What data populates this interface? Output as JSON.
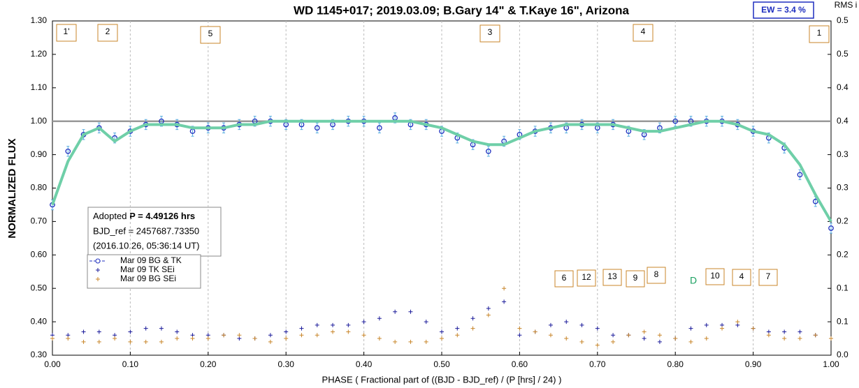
{
  "chart_data": {
    "type": "scatter",
    "title": "WD 1145+017; 2019.03.09; B.Gary 14\" & T.Kaye 16\",  Arizona",
    "xlabel": "PHASE ( Fractional part of ((BJD - BJD_ref) / (P [hrs] / 24) )",
    "ylabel": "NORMALIZED FLUX",
    "y2label": "RMS i",
    "ew_label": "EW =  3.4 %",
    "info_lines": [
      "Adopted",
      "P = 4.49126 hrs",
      "BJD_ref = 2457687.73350",
      "(2016.10.26, 05:36:14 UT)"
    ],
    "top_annotations": [
      "1'",
      "2",
      "5",
      "3",
      "4",
      "1"
    ],
    "bottom_annotations": [
      "6",
      "12",
      "13",
      "9",
      "8",
      "D",
      "10",
      "4",
      "7"
    ],
    "reference_line": 1.0,
    "grid": true,
    "xlim": [
      0,
      1
    ],
    "xticks": [
      {
        "value": 0,
        "label": "0.00"
      },
      {
        "value": 0.1,
        "label": "0.10"
      },
      {
        "value": 0.2,
        "label": "0.20"
      },
      {
        "value": 0.3,
        "label": "0.30"
      },
      {
        "value": 0.4,
        "label": "0.40"
      },
      {
        "value": 0.5,
        "label": "0.50"
      },
      {
        "value": 0.6,
        "label": "0.60"
      },
      {
        "value": 0.7,
        "label": "0.70"
      },
      {
        "value": 0.8,
        "label": "0.80"
      },
      {
        "value": 0.9,
        "label": "0.90"
      },
      {
        "value": 1,
        "label": "1.00"
      }
    ],
    "ylim": [
      0.3,
      1.3
    ],
    "yticks": [
      {
        "value": 0.3,
        "label": "0.30"
      },
      {
        "value": 0.4,
        "label": "0.40"
      },
      {
        "value": 0.5,
        "label": "0.50"
      },
      {
        "value": 0.6,
        "label": "0.60"
      },
      {
        "value": 0.7,
        "label": "0.70"
      },
      {
        "value": 0.8,
        "label": "0.80"
      },
      {
        "value": 0.9,
        "label": "0.90"
      },
      {
        "value": 1.0,
        "label": "1.00"
      },
      {
        "value": 1.1,
        "label": "1.10"
      },
      {
        "value": 1.2,
        "label": "1.20"
      },
      {
        "value": 1.3,
        "label": "1.30"
      }
    ],
    "y2lim": [
      0,
      0.5
    ],
    "y2ticks": [
      {
        "value": 0,
        "label": "0.0"
      },
      {
        "value": 0.05,
        "label": "0.1"
      },
      {
        "value": 0.1,
        "label": "0.1"
      },
      {
        "value": 0.15,
        "label": "0.2"
      },
      {
        "value": 0.2,
        "label": "0.2"
      },
      {
        "value": 0.25,
        "label": "0.3"
      },
      {
        "value": 0.3,
        "label": "0.3"
      },
      {
        "value": 0.35,
        "label": "0.4"
      },
      {
        "value": 0.4,
        "label": "0.4"
      },
      {
        "value": 0.45,
        "label": "0.5"
      },
      {
        "value": 0.5,
        "label": "0.5"
      }
    ],
    "x": [
      0,
      0.02,
      0.04,
      0.06,
      0.08,
      0.1,
      0.12,
      0.14,
      0.16,
      0.18,
      0.2,
      0.22,
      0.24,
      0.26,
      0.28,
      0.3,
      0.32,
      0.34,
      0.36,
      0.38,
      0.4,
      0.42,
      0.44,
      0.46,
      0.48,
      0.5,
      0.52,
      0.54,
      0.56,
      0.58,
      0.6,
      0.62,
      0.64,
      0.66,
      0.68,
      0.7,
      0.72,
      0.74,
      0.76,
      0.78,
      0.8,
      0.82,
      0.84,
      0.86,
      0.88,
      0.9,
      0.92,
      0.94,
      0.96,
      0.98,
      1.0
    ],
    "series": [
      {
        "name": "Mar 09 BG & TK",
        "style": "circle",
        "color": "#1f2fbf",
        "error_color": "#5aaee0",
        "values": [
          0.75,
          0.91,
          0.96,
          0.98,
          0.95,
          0.97,
          0.99,
          1.0,
          0.99,
          0.97,
          0.98,
          0.98,
          0.99,
          1.0,
          1.0,
          0.99,
          0.99,
          0.98,
          0.99,
          1.0,
          1.0,
          0.98,
          1.01,
          0.99,
          0.99,
          0.97,
          0.95,
          0.93,
          0.91,
          0.94,
          0.96,
          0.97,
          0.98,
          0.98,
          0.99,
          0.98,
          0.99,
          0.97,
          0.96,
          0.98,
          1.0,
          1.0,
          1.0,
          1.0,
          0.99,
          0.97,
          0.95,
          0.92,
          0.84,
          0.76,
          0.68
        ],
        "errors": [
          0.015,
          0.015,
          0.015,
          0.015,
          0.015,
          0.015,
          0.015,
          0.015,
          0.015,
          0.015,
          0.015,
          0.015,
          0.015,
          0.015,
          0.015,
          0.015,
          0.015,
          0.015,
          0.015,
          0.015,
          0.015,
          0.015,
          0.015,
          0.015,
          0.015,
          0.015,
          0.015,
          0.015,
          0.015,
          0.015,
          0.015,
          0.015,
          0.015,
          0.015,
          0.015,
          0.015,
          0.015,
          0.015,
          0.015,
          0.015,
          0.015,
          0.015,
          0.015,
          0.015,
          0.015,
          0.015,
          0.015,
          0.015,
          0.015,
          0.015,
          0.015
        ]
      },
      {
        "style": "line",
        "color": "#6fcfa8",
        "values": [
          0.75,
          0.88,
          0.96,
          0.98,
          0.94,
          0.97,
          0.99,
          0.99,
          0.99,
          0.98,
          0.98,
          0.98,
          0.99,
          0.99,
          1.0,
          1.0,
          1.0,
          1.0,
          1.0,
          1.0,
          1.0,
          1.0,
          1.0,
          1.0,
          0.99,
          0.98,
          0.96,
          0.94,
          0.93,
          0.93,
          0.95,
          0.97,
          0.98,
          0.99,
          0.99,
          0.99,
          0.99,
          0.98,
          0.97,
          0.97,
          0.98,
          0.99,
          1.0,
          1.0,
          0.99,
          0.97,
          0.96,
          0.93,
          0.87,
          0.78,
          0.7
        ]
      },
      {
        "name": "Mar 09 TK SEi",
        "style": "plus",
        "color": "#1a1a9a",
        "axis": "y2",
        "values": [
          0.03,
          0.03,
          0.035,
          0.035,
          0.03,
          0.035,
          0.04,
          0.04,
          0.035,
          0.03,
          0.03,
          0.03,
          0.025,
          0.025,
          0.03,
          0.035,
          0.04,
          0.045,
          0.045,
          0.045,
          0.05,
          0.055,
          0.065,
          0.065,
          0.05,
          0.035,
          0.04,
          0.055,
          0.07,
          0.08,
          0.03,
          0.035,
          0.045,
          0.05,
          0.045,
          0.04,
          0.03,
          0.03,
          0.025,
          0.02,
          0.025,
          0.04,
          0.045,
          0.045,
          0.045,
          0.04,
          0.035,
          0.035,
          0.035,
          0.03,
          0.025
        ]
      },
      {
        "name": "Mar 09 BG SEi",
        "style": "plus",
        "color": "#c8862a",
        "axis": "y2",
        "values": [
          0.025,
          0.025,
          0.02,
          0.02,
          0.025,
          0.02,
          0.02,
          0.02,
          0.025,
          0.025,
          0.025,
          0.03,
          0.03,
          0.025,
          0.02,
          0.025,
          0.03,
          0.03,
          0.035,
          0.035,
          0.03,
          0.025,
          0.02,
          0.02,
          0.02,
          0.025,
          0.03,
          0.04,
          0.06,
          0.1,
          0.04,
          0.035,
          0.03,
          0.025,
          0.02,
          0.015,
          0.02,
          0.03,
          0.035,
          0.03,
          0.025,
          0.02,
          0.025,
          0.04,
          0.05,
          0.04,
          0.03,
          0.025,
          0.025,
          0.03,
          0.025
        ]
      }
    ]
  }
}
